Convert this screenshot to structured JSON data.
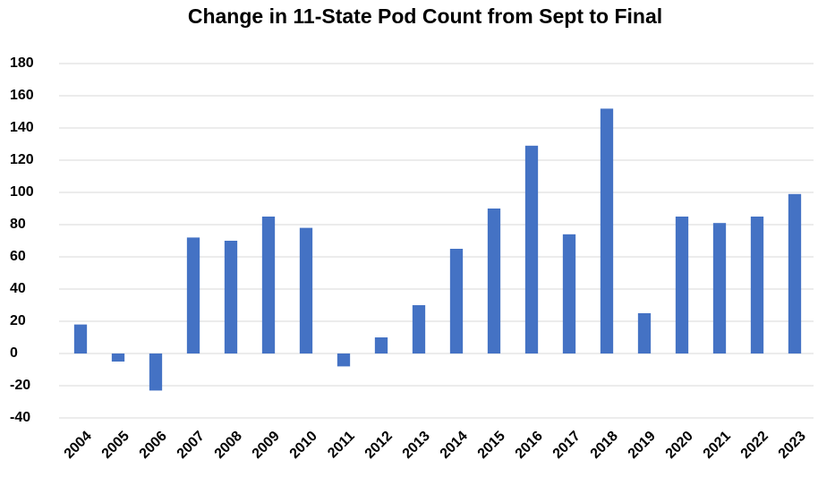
{
  "chart_data": {
    "type": "bar",
    "title": "Change in 11-State Pod Count from Sept to Final",
    "categories": [
      "2004",
      "2005",
      "2006",
      "2007",
      "2008",
      "2009",
      "2010",
      "2011",
      "2012",
      "2013",
      "2014",
      "2015",
      "2016",
      "2017",
      "2018",
      "2019",
      "2020",
      "2021",
      "2022",
      "2023"
    ],
    "values": [
      18,
      -5,
      -23,
      72,
      70,
      85,
      78,
      -8,
      10,
      30,
      65,
      90,
      129,
      74,
      152,
      25,
      85,
      81,
      85,
      99
    ],
    "color": "#4472c4",
    "ylim": [
      -40,
      180
    ],
    "yticks": [
      -40,
      -20,
      0,
      20,
      40,
      60,
      80,
      100,
      120,
      140,
      160,
      180
    ],
    "grid": true
  }
}
